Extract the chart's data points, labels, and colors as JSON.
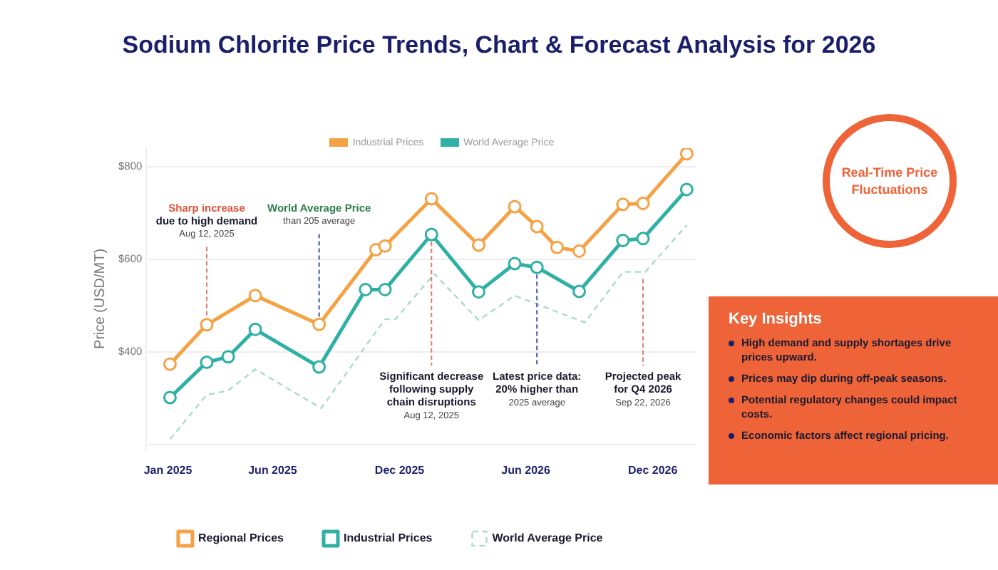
{
  "chart_data": [
    {
      "type": "line",
      "title": "Sodium Chlorite Price Trends, Chart & Forecast Analysis for 2026",
      "ylabel": "Price (USD/MT)",
      "series": [
        {
          "name": "Regional Prices",
          "color": "#f5a245",
          "marker": "circle",
          "line_style": "solid",
          "x": [
            "2025-01-04",
            "2025-02-26",
            "2025-05-07",
            "2025-08-07",
            "2025-10-28",
            "2025-11-10",
            "2026-01-16",
            "2026-03-25",
            "2026-05-16",
            "2026-06-17",
            "2026-07-16",
            "2026-08-17",
            "2026-10-19",
            "2026-11-17",
            "2027-01-19"
          ],
          "values": [
            374,
            459,
            522,
            460,
            621,
            629,
            731,
            631,
            714,
            671,
            626,
            618,
            719,
            721,
            828
          ]
        },
        {
          "name": "Industrial Prices",
          "color": "#2fb0a4",
          "marker": "circle",
          "line_style": "solid",
          "x": [
            "2025-01-04",
            "2025-02-26",
            "2025-03-29",
            "2025-05-07",
            "2025-08-07",
            "2025-10-13",
            "2025-11-10",
            "2026-01-16",
            "2026-03-25",
            "2026-05-16",
            "2026-06-17",
            "2026-08-17",
            "2026-10-19",
            "2026-11-17",
            "2027-01-19"
          ],
          "values": [
            302,
            378,
            390,
            449,
            368,
            535,
            535,
            654,
            530,
            591,
            583,
            531,
            641,
            645,
            751
          ]
        },
        {
          "name": "World Average Price",
          "color": "#a8dccb",
          "marker": "none",
          "line_style": "dashed",
          "x": [
            "2025-01-04",
            "2025-02-26",
            "2025-03-29",
            "2025-05-07",
            "2025-08-10",
            "2025-11-10",
            "2025-11-25",
            "2026-01-20",
            "2026-03-25",
            "2026-05-16",
            "2026-08-25",
            "2026-10-19",
            "2026-11-20",
            "2027-01-19"
          ],
          "values": [
            212,
            308,
            317,
            363,
            279,
            471,
            471,
            569,
            469,
            522,
            464,
            573,
            573,
            674
          ]
        }
      ],
      "xlim": [
        "2024-12-01",
        "2027-02-01"
      ],
      "xticks": [
        {
          "value": "2025-01-01",
          "label": "Jan 2025"
        },
        {
          "value": "2025-06-01",
          "label": "Jun 2025"
        },
        {
          "value": "2025-12-01",
          "label": "Dec 2025"
        },
        {
          "value": "2026-06-01",
          "label": "Jun 2026"
        },
        {
          "value": "2026-12-01",
          "label": "Dec 2026"
        }
      ],
      "ylim": [
        190,
        840
      ],
      "yticks": [
        {
          "value": 200,
          "label": null
        },
        {
          "value": 400,
          "label": "$400"
        },
        {
          "value": 600,
          "label": "$600"
        },
        {
          "value": 800,
          "label": "$800"
        }
      ],
      "grid": "y",
      "legend": "bottom",
      "annotations": [
        "Industrial Prices",
        "World Average Price",
        {
          "text": "Sharp increase\ndue to high demand\nAug 12, 2025",
          "x": "2025-02-26",
          "y": 459
        },
        {
          "text": "World Average Price\nthan 205 average",
          "x": "2025-08-07",
          "y": 460
        },
        {
          "text": "Significant decrease\nfollowing supply\nchain disruptions\nAug 12, 2025",
          "x": "2026-01-16",
          "y": 654
        },
        {
          "text": "Latest price data:\n20% higher than\n2025 average",
          "x": "2026-06-17",
          "y": 583
        },
        {
          "text": "Projected peak\nfor Q4 2026\nSep 22, 2026",
          "x": "2026-11-17",
          "y": 573
        }
      ]
    },
    {
      "type": "other",
      "title": "Real-Time Price Fluctuations"
    },
    {
      "type": "other",
      "title": "Key Insights",
      "annotations": [
        "High demand and supply shortages drive prices upward.",
        "Prices may dip during off-peak seasons.",
        "Potential regulatory changes could impact costs.",
        "Economic factors affect regional pricing."
      ]
    }
  ]
}
